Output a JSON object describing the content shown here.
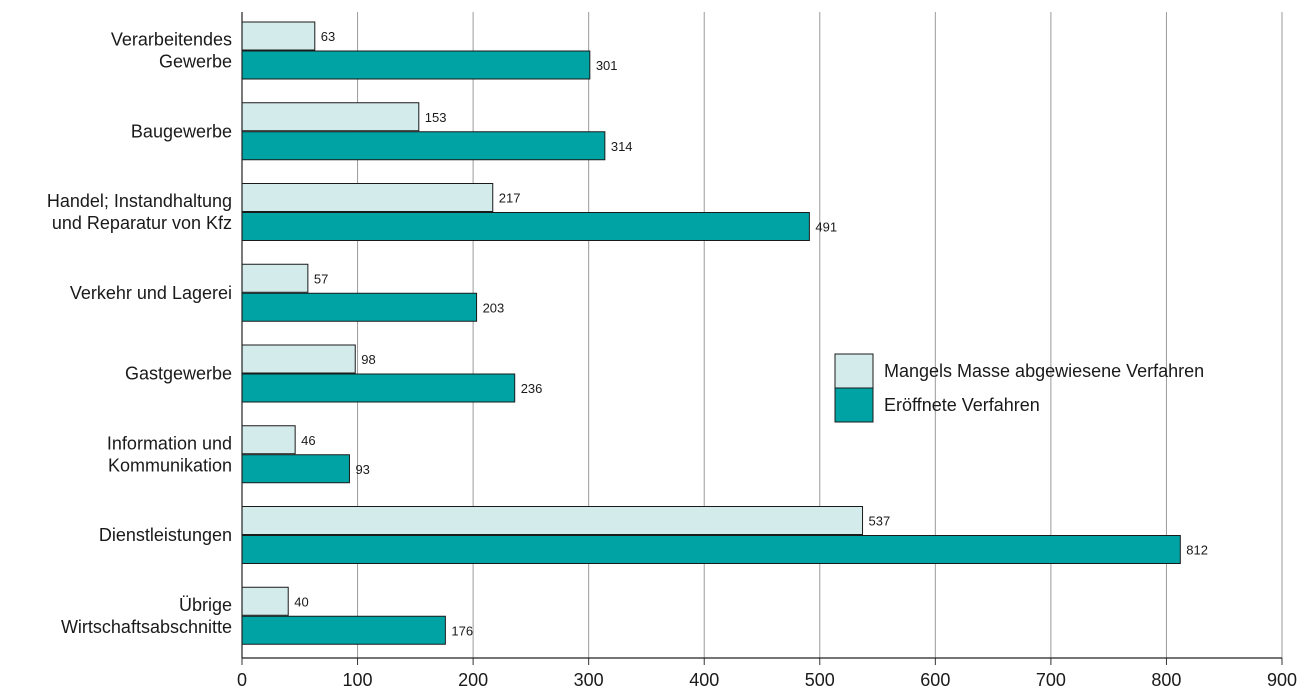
{
  "chart_data": {
    "type": "bar",
    "orientation": "horizontal",
    "categories": [
      [
        "Verarbeitendes",
        "Gewerbe"
      ],
      [
        "Baugewerbe"
      ],
      [
        "Handel; Instandhaltung",
        "und Reparatur von Kfz"
      ],
      [
        "Verkehr und Lagerei"
      ],
      [
        "Gastgewerbe"
      ],
      [
        "Information und",
        "Kommunikation"
      ],
      [
        "Dienstleistungen"
      ],
      [
        "Übrige",
        "Wirtschaftsabschnitte"
      ]
    ],
    "series": [
      {
        "name": "Mangels Masse abgewiesene Verfahren",
        "color": "#d4ebec",
        "values": [
          63,
          153,
          217,
          57,
          98,
          46,
          537,
          40
        ]
      },
      {
        "name": "Eröffnete Verfahren",
        "color": "#00a3a3",
        "values": [
          301,
          314,
          491,
          203,
          236,
          93,
          812,
          176
        ]
      }
    ],
    "xlim": [
      0,
      900
    ],
    "xticks": [
      0,
      100,
      200,
      300,
      400,
      500,
      600,
      700,
      800,
      900
    ],
    "grid": "vertical",
    "legend_position": "right-center",
    "title": "",
    "xlabel": "",
    "ylabel": ""
  }
}
